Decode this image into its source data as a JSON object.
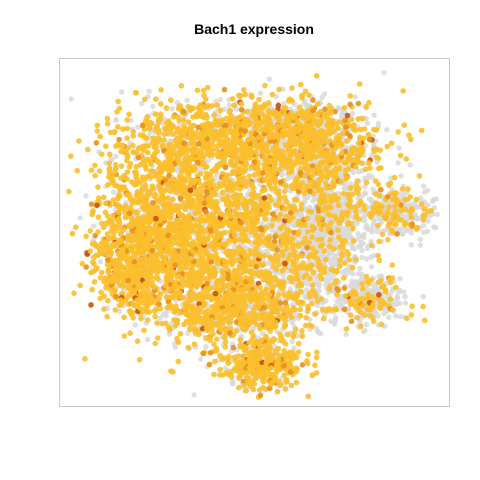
{
  "chart_data": {
    "type": "scatter",
    "title": "Bach1 expression",
    "xlabel": "",
    "ylabel": "",
    "legend": "none",
    "grid": false,
    "axes_visible": false,
    "colors": {
      "background_points": "#d9d9d9",
      "expressing_points": "#fbbf2e",
      "high_expression": "#e8901c",
      "max_expression": "#c8520e",
      "panel_border": "#c8c8c8"
    },
    "expression_scale": {
      "low": "#d9d9d9",
      "mid": "#fbbf2e",
      "high": "#c8520e"
    },
    "regions": [
      {
        "name": "upper-left-lobe",
        "cx": 0.26,
        "cy": 0.53,
        "sx": 0.09,
        "sy": 0.12,
        "n": 1100,
        "expr": 0.86
      },
      {
        "name": "top-cluster",
        "cx": 0.47,
        "cy": 0.77,
        "sx": 0.15,
        "sy": 0.06,
        "n": 1300,
        "expr": 0.74
      },
      {
        "name": "central-body",
        "cx": 0.44,
        "cy": 0.48,
        "sx": 0.12,
        "sy": 0.13,
        "n": 1700,
        "expr": 0.6
      },
      {
        "name": "upper-right-lobe",
        "cx": 0.68,
        "cy": 0.71,
        "sx": 0.07,
        "sy": 0.07,
        "n": 550,
        "expr": 0.5
      },
      {
        "name": "center-right-gray",
        "cx": 0.64,
        "cy": 0.44,
        "sx": 0.07,
        "sy": 0.09,
        "n": 650,
        "expr": 0.17
      },
      {
        "name": "left-lower",
        "cx": 0.19,
        "cy": 0.39,
        "sx": 0.05,
        "sy": 0.06,
        "n": 350,
        "expr": 0.86
      },
      {
        "name": "lower-middle",
        "cx": 0.44,
        "cy": 0.27,
        "sx": 0.1,
        "sy": 0.05,
        "n": 650,
        "expr": 0.62
      },
      {
        "name": "bottom-cluster",
        "cx": 0.52,
        "cy": 0.12,
        "sx": 0.05,
        "sy": 0.035,
        "n": 380,
        "expr": 0.72
      },
      {
        "name": "right-satellite",
        "cx": 0.86,
        "cy": 0.56,
        "sx": 0.05,
        "sy": 0.035,
        "n": 320,
        "expr": 0.28
      },
      {
        "name": "right-lower-satellite",
        "cx": 0.79,
        "cy": 0.31,
        "sx": 0.05,
        "sy": 0.035,
        "n": 300,
        "expr": 0.3
      },
      {
        "name": "mid-right-gray",
        "cx": 0.7,
        "cy": 0.55,
        "sx": 0.05,
        "sy": 0.05,
        "n": 300,
        "expr": 0.15
      },
      {
        "name": "top-right-gray",
        "cx": 0.6,
        "cy": 0.8,
        "sx": 0.06,
        "sy": 0.04,
        "n": 250,
        "expr": 0.35
      }
    ]
  }
}
